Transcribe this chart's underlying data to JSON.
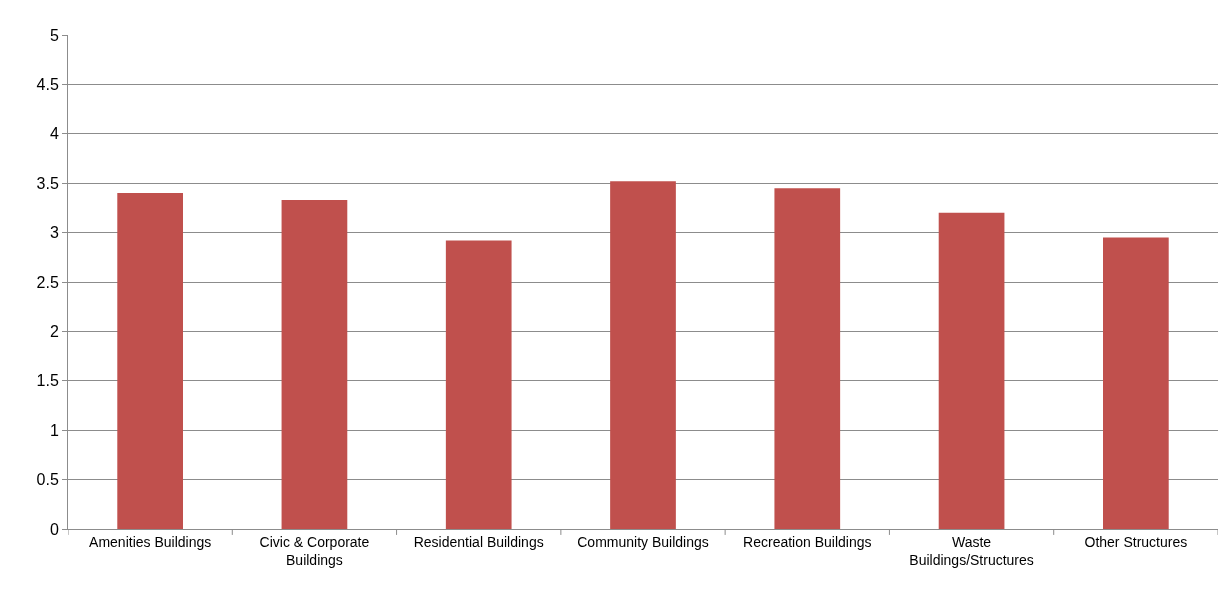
{
  "chart_data": {
    "type": "bar",
    "categories": [
      "Amenities Buildings",
      "Civic & Corporate Buildings",
      "Residential Buildings",
      "Community Buildings",
      "Recreation Buildings",
      "Waste Buildings/Structures",
      "Other Structures"
    ],
    "values": [
      3.4,
      3.33,
      2.92,
      3.52,
      3.45,
      3.2,
      2.95
    ],
    "color": "#c0504d",
    "ylim": [
      0,
      5
    ],
    "yticks": [
      0,
      0.5,
      1,
      1.5,
      2,
      2.5,
      3,
      3.5,
      4,
      4.5,
      5
    ],
    "grid": "y"
  }
}
